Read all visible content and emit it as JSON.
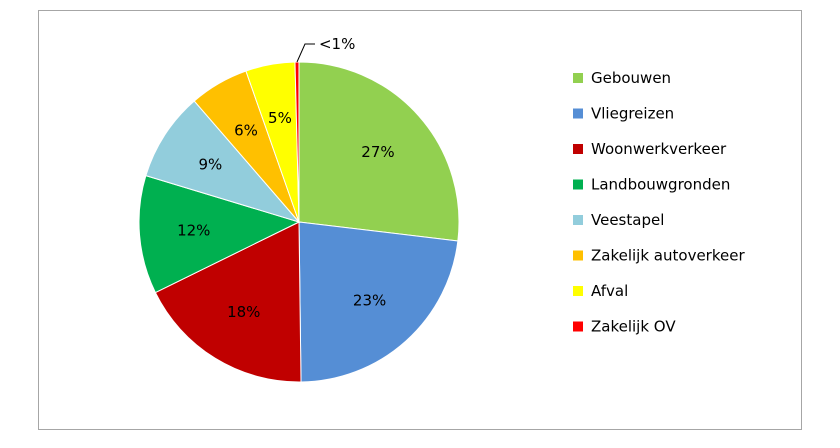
{
  "chart_data": {
    "type": "pie",
    "title": "",
    "slices": [
      {
        "label": "Gebouwen",
        "value": 27,
        "display": "27%",
        "color": "#92d050"
      },
      {
        "label": "Vliegreizen",
        "value": 23,
        "display": "23%",
        "color": "#558ed5"
      },
      {
        "label": "Woonwerkverkeer",
        "value": 18,
        "display": "18%",
        "color": "#c00000"
      },
      {
        "label": "Landbouwgronden",
        "value": 12,
        "display": "12%",
        "color": "#00b050"
      },
      {
        "label": "Veestapel",
        "value": 9,
        "display": "9%",
        "color": "#92cddc"
      },
      {
        "label": "Zakelijk autoverkeer",
        "value": 6,
        "display": "6%",
        "color": "#ffc000"
      },
      {
        "label": "Afval",
        "value": 5,
        "display": "5%",
        "color": "#ffff00"
      },
      {
        "label": "Zakelijk OV",
        "value": 0.4,
        "display": "<1%",
        "color": "#ff0000"
      }
    ],
    "legend": "right"
  }
}
